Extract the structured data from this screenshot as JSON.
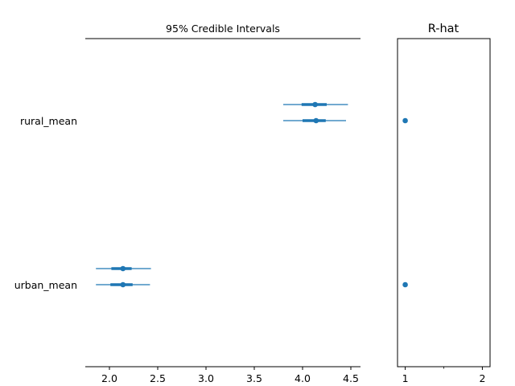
{
  "colors": {
    "series": "#1f77b4",
    "axis": "#000000"
  },
  "chart_data": [
    {
      "type": "forest",
      "title": "95% Credible Intervals",
      "parameters": [
        "rural_mean",
        "urban_mean"
      ],
      "x_ticks": [
        2.0,
        2.5,
        3.0,
        3.5,
        4.0,
        4.5
      ],
      "x_tick_labels": [
        "2.0",
        "2.5",
        "3.0",
        "3.5",
        "4.0",
        "4.5"
      ],
      "xlim": [
        1.75,
        4.6
      ],
      "intervals": [
        {
          "parameter": "rural_mean",
          "chain": 0,
          "low": 3.8,
          "iqr_low": 3.99,
          "median": 4.13,
          "iqr_high": 4.25,
          "high": 4.47
        },
        {
          "parameter": "rural_mean",
          "chain": 1,
          "low": 3.8,
          "iqr_low": 4.0,
          "median": 4.14,
          "iqr_high": 4.24,
          "high": 4.45
        },
        {
          "parameter": "urban_mean",
          "chain": 0,
          "low": 1.86,
          "iqr_low": 2.02,
          "median": 2.14,
          "iqr_high": 2.23,
          "high": 2.43
        },
        {
          "parameter": "urban_mean",
          "chain": 1,
          "low": 1.86,
          "iqr_low": 2.01,
          "median": 2.14,
          "iqr_high": 2.24,
          "high": 2.42
        }
      ]
    },
    {
      "type": "scatter",
      "title": "R-hat",
      "x_ticks": [
        1,
        2
      ],
      "x_tick_labels": [
        "1",
        "2"
      ],
      "xlim": [
        0.9,
        2.1
      ],
      "points": [
        {
          "parameter": "rural_mean",
          "value": 1.0
        },
        {
          "parameter": "urban_mean",
          "value": 1.0
        }
      ]
    }
  ]
}
